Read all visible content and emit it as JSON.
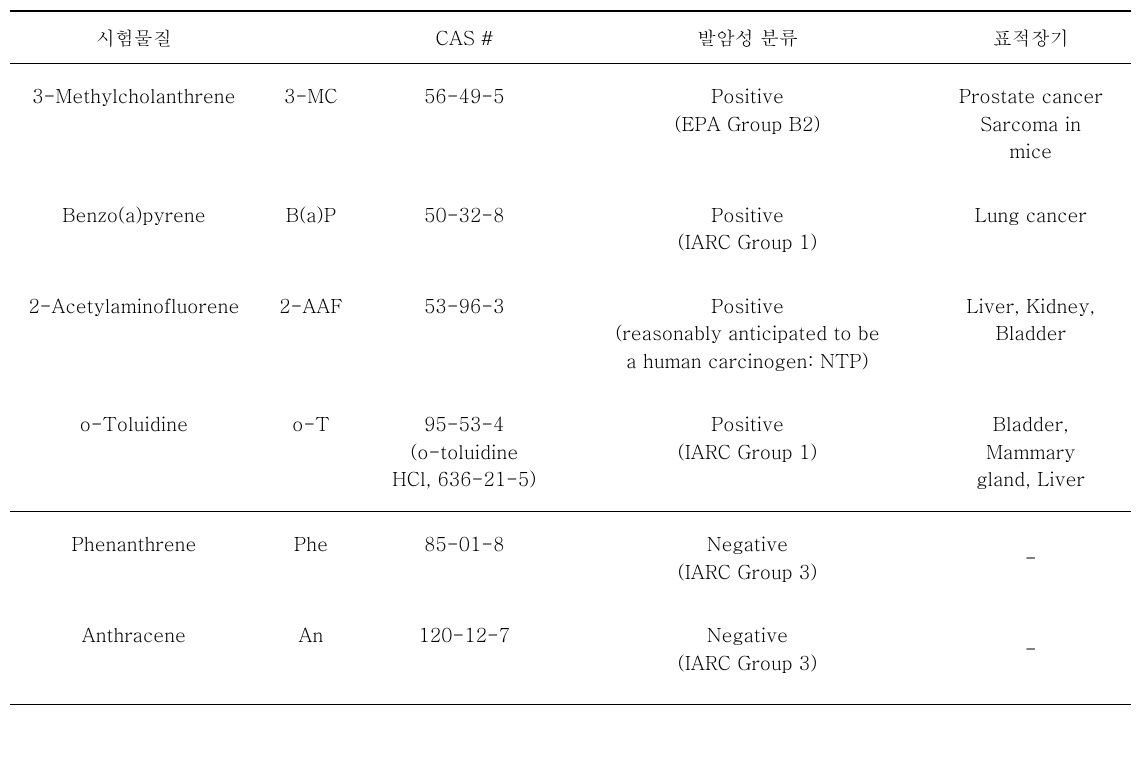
{
  "table": {
    "headers": {
      "substance": "시험물질",
      "abbr": "",
      "cas": "CAS #",
      "classification": "발암성 분류",
      "target": "표적장기"
    },
    "rows": [
      {
        "substance": "3-Methylcholanthrene",
        "abbr": "3-MC",
        "cas": "56-49-5",
        "classification_line1": "Positive",
        "classification_line2": "(EPA Group B2)",
        "target_line1": "Prostate cancer",
        "target_line2": "Sarcoma in",
        "target_line3": "mice"
      },
      {
        "substance": "Benzo(a)pyrene",
        "abbr": "B(a)P",
        "cas": "50-32-8",
        "classification_line1": "Positive",
        "classification_line2": "(IARC Group 1)",
        "target_line1": "Lung cancer",
        "target_line2": "",
        "target_line3": ""
      },
      {
        "substance": "2-Acetylaminofluorene",
        "abbr": "2-AAF",
        "cas": "53-96-3",
        "classification_line1": "Positive",
        "classification_line2": "(reasonably anticipated to be",
        "classification_line3": "a human carcinogen: NTP)",
        "target_line1": "Liver, Kidney,",
        "target_line2": "Bladder",
        "target_line3": ""
      },
      {
        "substance": "o-Toluidine",
        "abbr": "o-T",
        "cas_line1": "95-53-4",
        "cas_line2": "(o-toluidine",
        "cas_line3": "HCl, 636-21-5)",
        "classification_line1": "Positive",
        "classification_line2": "(IARC Group 1)",
        "target_line1": "Bladder,",
        "target_line2": "Mammary",
        "target_line3": "gland, Liver"
      },
      {
        "substance": "Phenanthrene",
        "abbr": "Phe",
        "cas": "85-01-8",
        "classification_line1": "Negative",
        "classification_line2": "(IARC Group 3)",
        "target_line1": "-",
        "target_line2": "",
        "target_line3": ""
      },
      {
        "substance": "Anthracene",
        "abbr": "An",
        "cas": "120-12-7",
        "classification_line1": "Negative",
        "classification_line2": "(IARC Group 3)",
        "target_line1": "-",
        "target_line2": "",
        "target_line3": ""
      }
    ]
  }
}
